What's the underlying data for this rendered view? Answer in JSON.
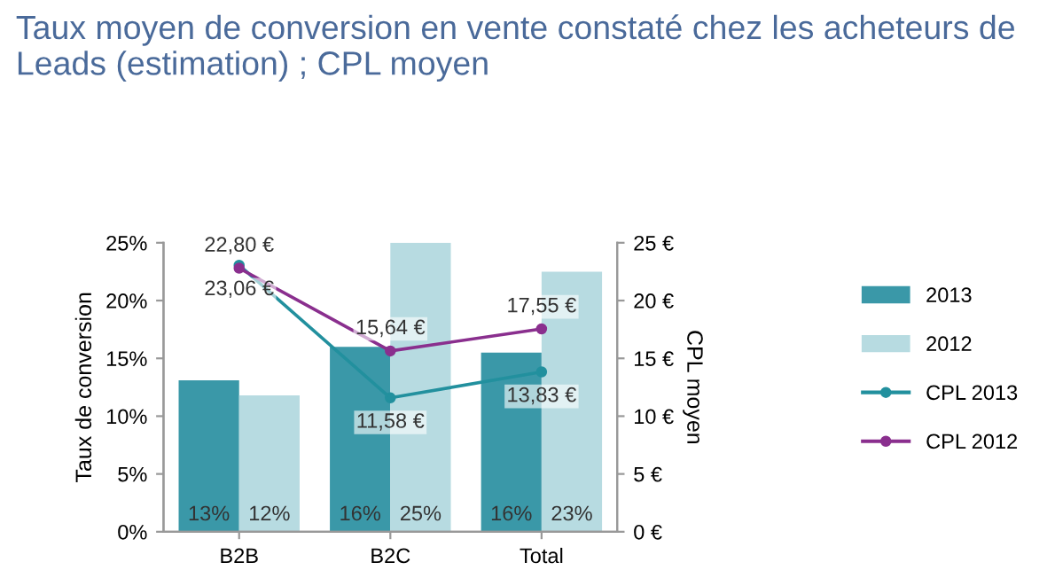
{
  "chart_data": {
    "type": "bar",
    "title": "Taux moyen de conversion en vente constaté chez les acheteurs de Leads (estimation) ; CPL moyen",
    "ylabel": "Taux de conversion",
    "y2label": "CPL moyen",
    "categories": [
      "B2B",
      "B2C",
      "Total"
    ],
    "series": [
      {
        "name": "2013",
        "color": "#3a98a8",
        "values": [
          13.1,
          16.0,
          15.5
        ],
        "value_labels": [
          "13%",
          "16%",
          "16%"
        ]
      },
      {
        "name": "2012",
        "color": "#b7dbe1",
        "values": [
          11.8,
          25.0,
          22.5
        ],
        "value_labels": [
          "12%",
          "25%",
          "23%"
        ]
      },
      {
        "name": "CPL 2013",
        "type": "line",
        "axis": "y2",
        "color": "#22909e",
        "marker": "circle",
        "values": [
          23.06,
          11.58,
          13.83
        ],
        "value_labels": [
          "23,06 €",
          "11,58 €",
          "13,83 €"
        ]
      },
      {
        "name": "CPL 2012",
        "type": "line",
        "axis": "y2",
        "color": "#8a2f8e",
        "marker": "circle",
        "values": [
          22.8,
          15.64,
          17.55
        ],
        "value_labels": [
          "22,80 €",
          "15,64 €",
          "17,55 €"
        ]
      }
    ],
    "ylim": [
      0,
      25
    ],
    "yticks": [
      {
        "value": 0,
        "label": "0%"
      },
      {
        "value": 5,
        "label": "5%"
      },
      {
        "value": 10,
        "label": "10%"
      },
      {
        "value": 15,
        "label": "15%"
      },
      {
        "value": 20,
        "label": "20%"
      },
      {
        "value": 25,
        "label": "25%"
      }
    ],
    "y2lim": [
      0,
      25
    ],
    "y2ticks": [
      {
        "value": 0,
        "label": "0 €"
      },
      {
        "value": 5,
        "label": "5 €"
      },
      {
        "value": 10,
        "label": "10 €"
      },
      {
        "value": 15,
        "label": "15 €"
      },
      {
        "value": 20,
        "label": "20 €"
      },
      {
        "value": 25,
        "label": "25 €"
      }
    ],
    "legend": "right",
    "grid": false
  }
}
